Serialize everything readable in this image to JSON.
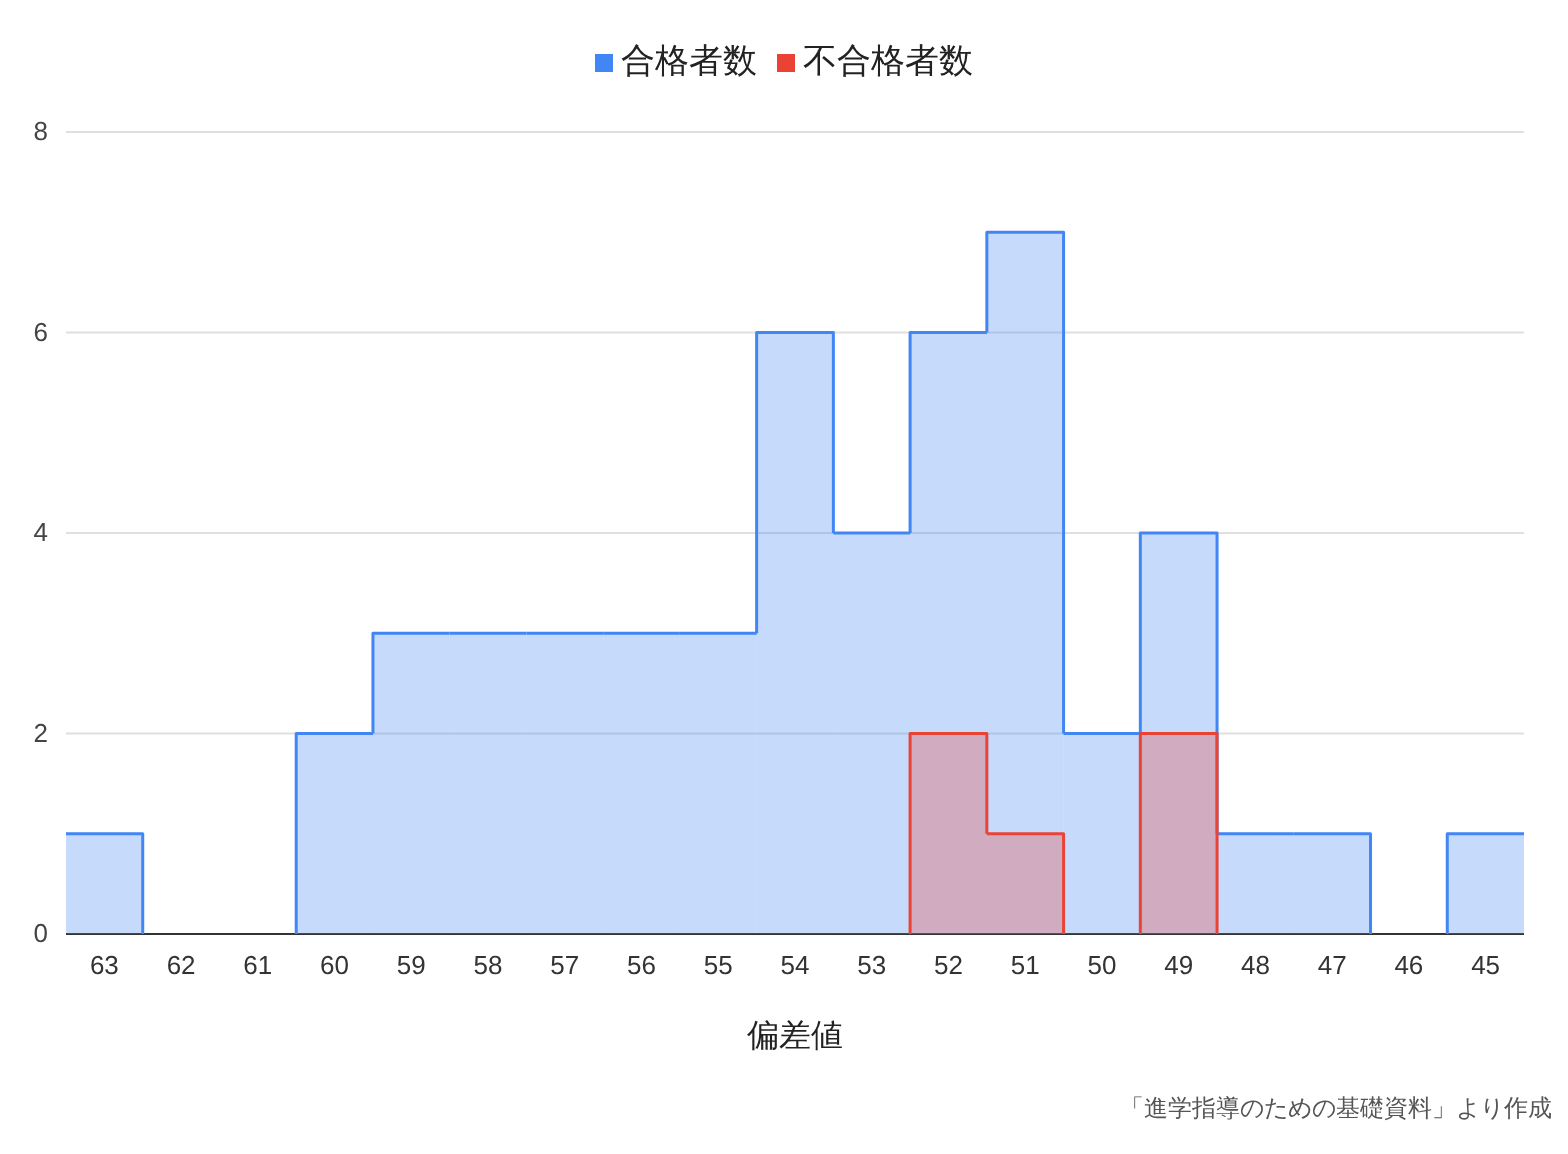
{
  "chart_data": {
    "type": "histogram",
    "xlabel": "偏差値",
    "bins": [
      63.5,
      62.5,
      61.5,
      60.5,
      59.5,
      58.5,
      57.5,
      56.5,
      55.5,
      54.5,
      53.5,
      52.5,
      51.5,
      50.5,
      49.5,
      48.5,
      47.5,
      46.5,
      45.5,
      44.5
    ],
    "xlim": [
      63.5,
      44.5
    ],
    "xticks": [
      63,
      62,
      61,
      60,
      59,
      58,
      57,
      56,
      55,
      54,
      53,
      52,
      51,
      50,
      49,
      48,
      47,
      46,
      45
    ],
    "series": [
      {
        "name": "合格者数",
        "color": "#4285f4",
        "values": [
          1,
          0,
          0,
          2,
          3,
          3,
          3,
          3,
          3,
          6,
          4,
          6,
          7,
          2,
          4,
          1,
          1,
          0,
          1
        ]
      },
      {
        "name": "不合格者数",
        "color": "#ea4335",
        "values": [
          null,
          null,
          null,
          null,
          null,
          null,
          null,
          null,
          null,
          null,
          null,
          2,
          1,
          null,
          2,
          null,
          null,
          null,
          null
        ]
      }
    ],
    "ylim": [
      0,
      8
    ],
    "yticks": [
      0,
      2,
      4,
      6,
      8
    ],
    "grid": "y",
    "legend": "top",
    "annotations": [
      "「進学指導のための基礎資料」より作成"
    ]
  }
}
